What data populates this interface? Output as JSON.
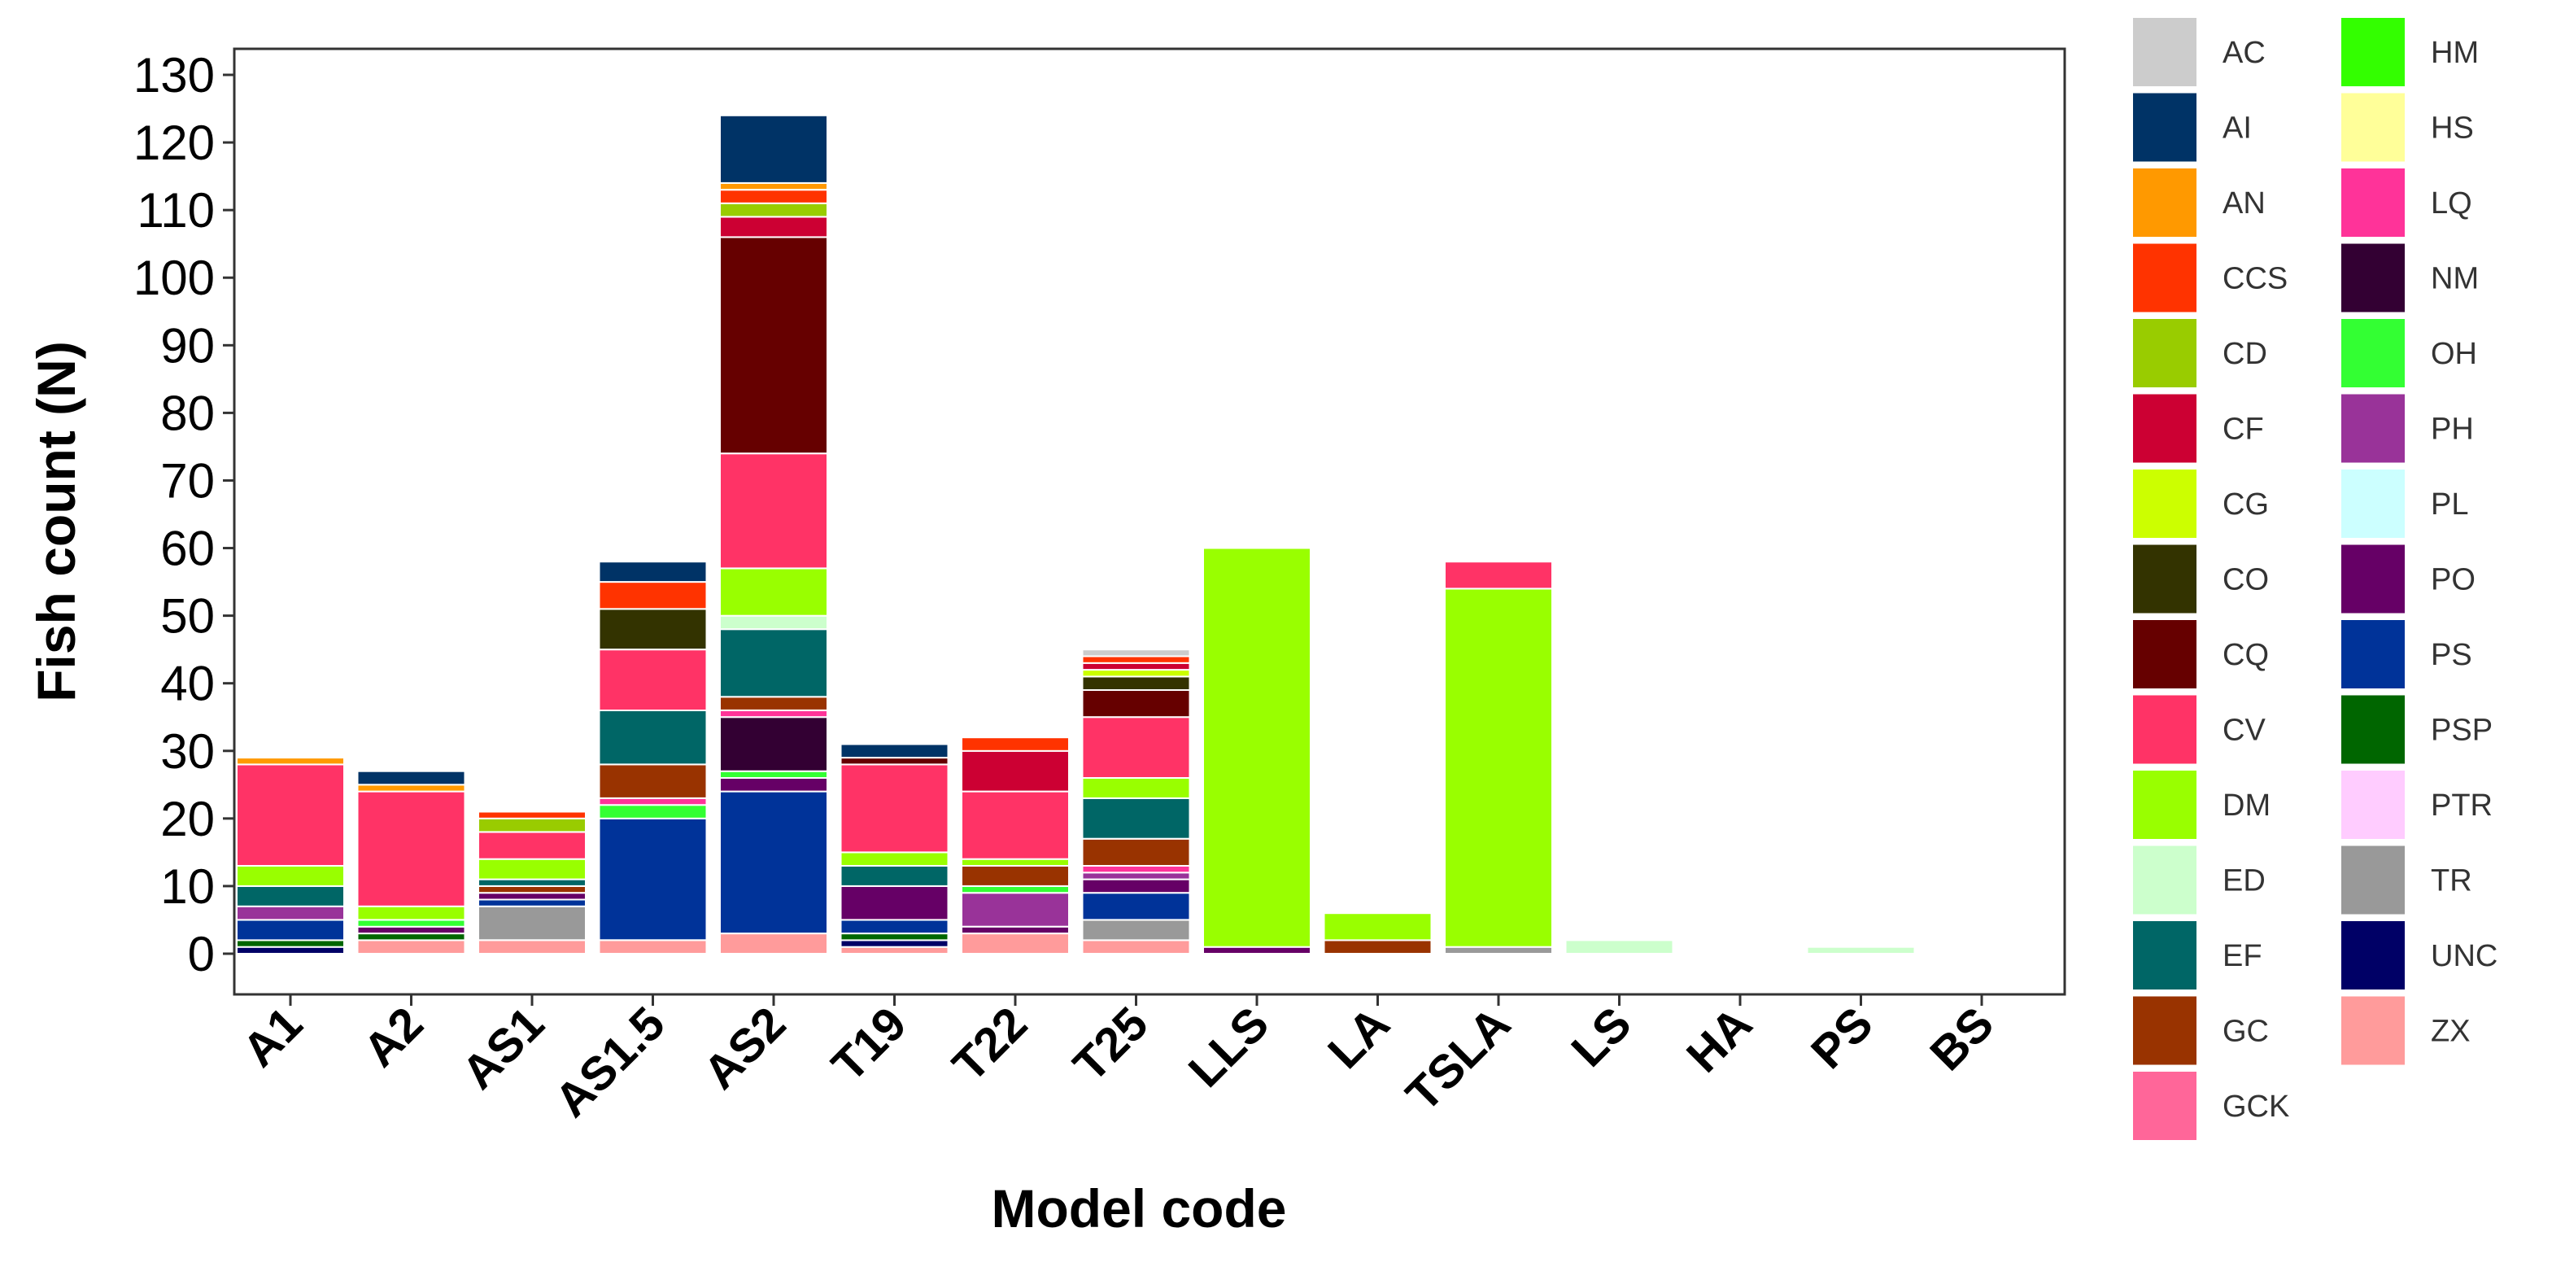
{
  "chart_data": {
    "type": "bar",
    "stacked": true,
    "title": "",
    "xlabel": "Model code",
    "ylabel": "Fish count (N)",
    "ylim": [
      0,
      130
    ],
    "yticks": [
      0,
      10,
      20,
      30,
      40,
      50,
      60,
      70,
      80,
      90,
      100,
      110,
      120,
      130
    ],
    "grid": false,
    "legend_position": "right",
    "categories": [
      "A1",
      "A2",
      "AS1",
      "AS1.5",
      "AS2",
      "T19",
      "T22",
      "T25",
      "LLS",
      "LA",
      "TSLA",
      "LS",
      "HA",
      "PS",
      "BS"
    ],
    "series": [
      {
        "name": "ZX",
        "color": "#ff9b9b",
        "values": [
          0,
          2,
          2,
          2,
          3,
          1,
          3,
          2,
          0,
          0,
          0,
          0,
          0,
          0,
          0
        ]
      },
      {
        "name": "UNC",
        "color": "#000066",
        "values": [
          1,
          0,
          0,
          0,
          0,
          1,
          0,
          0,
          0,
          0,
          0,
          0,
          0,
          0,
          0
        ]
      },
      {
        "name": "TR",
        "color": "#999999",
        "values": [
          0,
          0,
          5,
          0,
          0,
          0,
          0,
          3,
          0,
          0,
          1,
          0,
          0,
          0,
          0
        ]
      },
      {
        "name": "PTR",
        "color": "#ffccff",
        "values": [
          0,
          0,
          0,
          0,
          0,
          0,
          0,
          0,
          0,
          0,
          0,
          0,
          0,
          0,
          0
        ]
      },
      {
        "name": "PSP",
        "color": "#006600",
        "values": [
          1,
          1,
          0,
          0,
          0,
          1,
          0,
          0,
          0,
          0,
          0,
          0,
          0,
          0,
          0
        ]
      },
      {
        "name": "PS",
        "color": "#003399",
        "values": [
          3,
          0,
          1,
          18,
          21,
          2,
          0,
          4,
          0,
          0,
          0,
          0,
          0,
          0,
          0
        ]
      },
      {
        "name": "PO",
        "color": "#660066",
        "values": [
          0,
          1,
          1,
          0,
          2,
          5,
          1,
          2,
          1,
          0,
          0,
          0,
          0,
          0,
          0
        ]
      },
      {
        "name": "PL",
        "color": "#ccffff",
        "values": [
          0,
          0,
          0,
          0,
          0,
          0,
          0,
          0,
          0,
          0,
          0,
          0,
          0,
          0,
          0
        ]
      },
      {
        "name": "PH",
        "color": "#993399",
        "values": [
          2,
          0,
          0,
          0,
          0,
          0,
          5,
          1,
          0,
          0,
          0,
          0,
          0,
          0,
          0
        ]
      },
      {
        "name": "OH",
        "color": "#33ff33",
        "values": [
          0,
          1,
          0,
          2,
          1,
          0,
          1,
          0,
          0,
          0,
          0,
          0,
          0,
          0,
          0
        ]
      },
      {
        "name": "NM",
        "color": "#330033",
        "values": [
          0,
          0,
          0,
          0,
          8,
          0,
          0,
          0,
          0,
          0,
          0,
          0,
          0,
          0,
          0
        ]
      },
      {
        "name": "LQ",
        "color": "#ff3399",
        "values": [
          0,
          0,
          0,
          1,
          1,
          0,
          0,
          1,
          0,
          0,
          0,
          0,
          0,
          0,
          0
        ]
      },
      {
        "name": "HS",
        "color": "#ffff99",
        "values": [
          0,
          0,
          0,
          0,
          0,
          0,
          0,
          0,
          0,
          0,
          0,
          0,
          0,
          0,
          0
        ]
      },
      {
        "name": "HM",
        "color": "#33ff00",
        "values": [
          0,
          0,
          0,
          0,
          0,
          0,
          0,
          0,
          0,
          0,
          0,
          0,
          0,
          0,
          0
        ]
      },
      {
        "name": "GCK",
        "color": "#ff6699",
        "values": [
          0,
          0,
          0,
          0,
          0,
          0,
          0,
          0,
          0,
          0,
          0,
          0,
          0,
          0,
          0
        ]
      },
      {
        "name": "GC",
        "color": "#993300",
        "values": [
          0,
          0,
          1,
          5,
          2,
          0,
          3,
          4,
          0,
          2,
          0,
          0,
          0,
          0,
          0
        ]
      },
      {
        "name": "EF",
        "color": "#006666",
        "values": [
          3,
          0,
          1,
          8,
          10,
          3,
          0,
          6,
          0,
          0,
          0,
          0,
          0,
          0,
          0
        ]
      },
      {
        "name": "ED",
        "color": "#ccffcc",
        "values": [
          0,
          0,
          0,
          0,
          2,
          0,
          0,
          0,
          0,
          0,
          0,
          2,
          0,
          1,
          0
        ]
      },
      {
        "name": "DM",
        "color": "#99ff00",
        "values": [
          3,
          2,
          3,
          0,
          7,
          2,
          1,
          3,
          59,
          4,
          53,
          0,
          0,
          0,
          0
        ]
      },
      {
        "name": "CV",
        "color": "#ff3366",
        "values": [
          15,
          17,
          4,
          9,
          17,
          13,
          10,
          9,
          0,
          0,
          4,
          0,
          0,
          0,
          0
        ]
      },
      {
        "name": "CQ",
        "color": "#660000",
        "values": [
          0,
          0,
          0,
          0,
          32,
          1,
          0,
          4,
          0,
          0,
          0,
          0,
          0,
          0,
          0
        ]
      },
      {
        "name": "CO",
        "color": "#333300",
        "values": [
          0,
          0,
          0,
          6,
          0,
          0,
          0,
          2,
          0,
          0,
          0,
          0,
          0,
          0,
          0
        ]
      },
      {
        "name": "CG",
        "color": "#ccff00",
        "values": [
          0,
          0,
          0,
          0,
          0,
          0,
          0,
          1,
          0,
          0,
          0,
          0,
          0,
          0,
          0
        ]
      },
      {
        "name": "CF",
        "color": "#cc0033",
        "values": [
          0,
          0,
          0,
          0,
          3,
          0,
          6,
          1,
          0,
          0,
          0,
          0,
          0,
          0,
          0
        ]
      },
      {
        "name": "CD",
        "color": "#99cc00",
        "values": [
          0,
          0,
          2,
          0,
          2,
          0,
          0,
          0,
          0,
          0,
          0,
          0,
          0,
          0,
          0
        ]
      },
      {
        "name": "CCS",
        "color": "#ff3300",
        "values": [
          0,
          0,
          1,
          4,
          2,
          0,
          2,
          1,
          0,
          0,
          0,
          0,
          0,
          0,
          0
        ]
      },
      {
        "name": "AN",
        "color": "#ff9900",
        "values": [
          1,
          1,
          0,
          0,
          1,
          0,
          0,
          0,
          0,
          0,
          0,
          0,
          0,
          0,
          0
        ]
      },
      {
        "name": "AI",
        "color": "#003366",
        "values": [
          0,
          2,
          0,
          3,
          10,
          2,
          0,
          0,
          0,
          0,
          0,
          0,
          0,
          0,
          0
        ]
      },
      {
        "name": "AC",
        "color": "#cccccc",
        "values": [
          0,
          0,
          0,
          0,
          0,
          0,
          0,
          1,
          0,
          0,
          0,
          0,
          0,
          0,
          0
        ]
      }
    ],
    "legend": [
      {
        "name": "AC",
        "color": "#cccccc"
      },
      {
        "name": "AI",
        "color": "#003366"
      },
      {
        "name": "AN",
        "color": "#ff9900"
      },
      {
        "name": "CCS",
        "color": "#ff3300"
      },
      {
        "name": "CD",
        "color": "#99cc00"
      },
      {
        "name": "CF",
        "color": "#cc0033"
      },
      {
        "name": "CG",
        "color": "#ccff00"
      },
      {
        "name": "CO",
        "color": "#333300"
      },
      {
        "name": "CQ",
        "color": "#660000"
      },
      {
        "name": "CV",
        "color": "#ff3366"
      },
      {
        "name": "DM",
        "color": "#99ff00"
      },
      {
        "name": "ED",
        "color": "#ccffcc"
      },
      {
        "name": "EF",
        "color": "#006666"
      },
      {
        "name": "GC",
        "color": "#993300"
      },
      {
        "name": "GCK",
        "color": "#ff6699"
      },
      {
        "name": "HM",
        "color": "#33ff00"
      },
      {
        "name": "HS",
        "color": "#ffff99"
      },
      {
        "name": "LQ",
        "color": "#ff3399"
      },
      {
        "name": "NM",
        "color": "#330033"
      },
      {
        "name": "OH",
        "color": "#33ff33"
      },
      {
        "name": "PH",
        "color": "#993399"
      },
      {
        "name": "PL",
        "color": "#ccffff"
      },
      {
        "name": "PO",
        "color": "#660066"
      },
      {
        "name": "PS",
        "color": "#003399"
      },
      {
        "name": "PSP",
        "color": "#006600"
      },
      {
        "name": "PTR",
        "color": "#ffccff"
      },
      {
        "name": "TR",
        "color": "#999999"
      },
      {
        "name": "UNC",
        "color": "#000066"
      },
      {
        "name": "ZX",
        "color": "#ff9b9b"
      }
    ]
  }
}
